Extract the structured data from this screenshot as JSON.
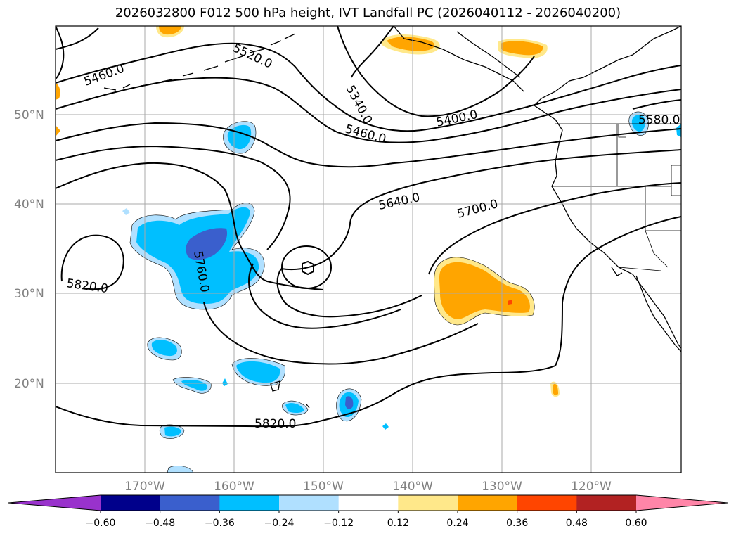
{
  "title": "2026032800 F012 500 hPa height, IVT Landfall PC (2026040112 - 2026040200)",
  "lat_labels": [
    "50°N",
    "40°N",
    "30°N",
    "20°N"
  ],
  "lon_labels": [
    "170°W",
    "160°W",
    "150°W",
    "140°W",
    "130°W",
    "120°W"
  ],
  "contour_labels": [
    "5460.0",
    "5520.0",
    "5340.0",
    "5460.0",
    "5400.0",
    "5580.0",
    "5640.0",
    "5700.0",
    "5760.0",
    "5820.0",
    "5820.0"
  ],
  "colorbar": {
    "tick_labels": [
      "−0.60",
      "−0.48",
      "−0.36",
      "−0.24",
      "−0.12",
      "0.12",
      "0.24",
      "0.36",
      "0.48",
      "0.60"
    ],
    "colors": [
      "#9932cc",
      "#00008b",
      "#3a5fcd",
      "#00bfff",
      "#b0e0ff",
      "#ffffff",
      "#ffe88a",
      "#ffa500",
      "#ff4500",
      "#b22222",
      "#ff85a8"
    ]
  },
  "chart_data": {
    "type": "heatmap",
    "title": "2026032800 F012 500 hPa height, IVT Landfall PC (2026040112 - 2026040200)",
    "lon_range": [
      -180,
      -110
    ],
    "lat_range": [
      10,
      60
    ],
    "grid": true,
    "contour_levels_labeled": [
      5340,
      5400,
      5460,
      5520,
      5580,
      5640,
      5700,
      5760,
      5820
    ],
    "colorbar_bounds": [
      -0.6,
      -0.48,
      -0.36,
      -0.24,
      -0.12,
      0.12,
      0.24,
      0.36,
      0.48,
      0.6
    ],
    "colorbar_extend": "both",
    "colorbar_position": "bottom"
  }
}
